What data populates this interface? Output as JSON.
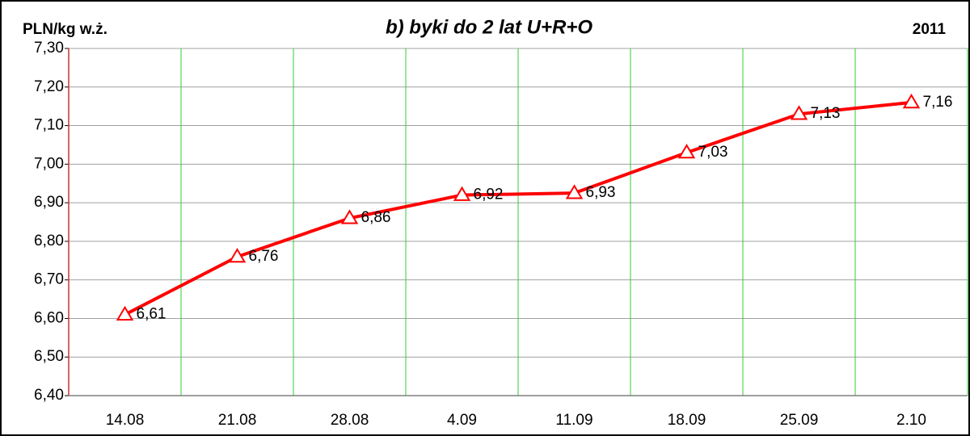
{
  "chart_data": {
    "type": "line",
    "title": "b) byki do 2 lat U+R+O",
    "y_label": "PLN/kg w.ż.",
    "year": "2011",
    "categories": [
      "14.08",
      "21.08",
      "28.08",
      "4.09",
      "11.09",
      "18.09",
      "25.09",
      "2.10"
    ],
    "series": [
      {
        "name": null,
        "color": "#ff0000",
        "values": [
          6.61,
          6.76,
          6.86,
          6.92,
          6.925,
          7.03,
          7.13,
          7.16
        ],
        "value_labels": [
          "6,61",
          "6,76",
          "6,86",
          "6,92",
          "6,93",
          "7,03",
          "7,13",
          "7,16"
        ]
      }
    ],
    "ylim": [
      6.4,
      7.3
    ],
    "yticks": [
      {
        "value": 6.4,
        "label": "6,40"
      },
      {
        "value": 6.5,
        "label": "6,50"
      },
      {
        "value": 6.6,
        "label": "6,60"
      },
      {
        "value": 6.7,
        "label": "6,70"
      },
      {
        "value": 6.8,
        "label": "6,80"
      },
      {
        "value": 6.9,
        "label": "6,90"
      },
      {
        "value": 7.0,
        "label": "7,00"
      },
      {
        "value": 7.1,
        "label": "7,10"
      },
      {
        "value": 7.2,
        "label": "7,20"
      },
      {
        "value": 7.3,
        "label": "7,30"
      }
    ],
    "grid": true
  }
}
